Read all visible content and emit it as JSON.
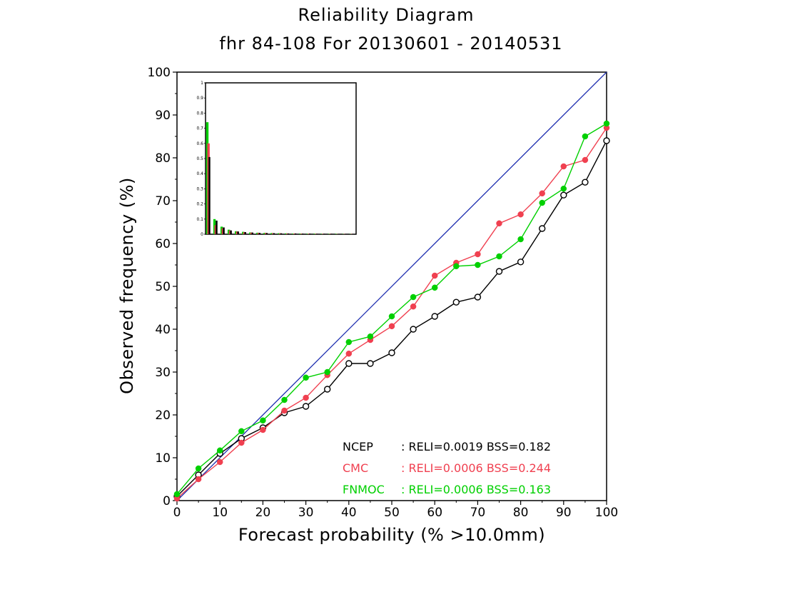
{
  "chart_data": {
    "type": "line",
    "title": "Reliability Diagram",
    "subtitle": "fhr 84-108 For 20130601 - 20140531",
    "xlabel": "Forecast probability (% >10.0mm)",
    "ylabel": "Observed frequency (%)",
    "xlim": [
      0,
      100
    ],
    "ylim": [
      0,
      100
    ],
    "x_ticks": [
      "0",
      "10",
      "20",
      "30",
      "40",
      "50",
      "60",
      "70",
      "80",
      "90",
      "100"
    ],
    "y_ticks": [
      "0",
      "10",
      "20",
      "30",
      "40",
      "50",
      "60",
      "70",
      "80",
      "90",
      "100"
    ],
    "grid": false,
    "diagonal_color": "#1f2fb0",
    "series": [
      {
        "name": "NCEP",
        "color": "#000000",
        "marker": "open-circle",
        "x": [
          0,
          5,
          10,
          15,
          20,
          25,
          30,
          35,
          40,
          45,
          50,
          55,
          60,
          65,
          70,
          75,
          80,
          85,
          90,
          95,
          100
        ],
        "y": [
          1,
          6,
          11,
          14.5,
          17,
          20.5,
          22,
          26,
          32,
          32,
          34.5,
          40,
          43,
          46.3,
          47.5,
          53.5,
          55.7,
          63.5,
          71.3,
          74.3,
          84
        ]
      },
      {
        "name": "CMC",
        "color": "#f04050",
        "marker": "filled-circle",
        "x": [
          0,
          5,
          10,
          15,
          20,
          25,
          30,
          35,
          40,
          45,
          50,
          55,
          60,
          65,
          70,
          75,
          80,
          85,
          90,
          95,
          100
        ],
        "y": [
          0.5,
          5,
          9,
          13.5,
          16.5,
          21,
          24,
          29.3,
          34.3,
          37.5,
          40.7,
          45.3,
          52.5,
          55.5,
          57.5,
          64.7,
          66.8,
          71.7,
          78,
          79.5,
          87
        ]
      },
      {
        "name": "FNMOC",
        "color": "#00d000",
        "marker": "filled-circle",
        "x": [
          0,
          5,
          10,
          15,
          20,
          25,
          30,
          35,
          40,
          45,
          50,
          55,
          60,
          65,
          70,
          75,
          80,
          85,
          90,
          95,
          100
        ],
        "y": [
          1.5,
          7.5,
          11.7,
          16.2,
          18.7,
          23.5,
          28.7,
          30,
          37,
          38.3,
          43,
          47.5,
          49.7,
          54.7,
          55,
          57,
          61,
          69.5,
          72.8,
          85,
          88
        ]
      }
    ],
    "legend": {
      "placement": "bottom-right",
      "entries": [
        {
          "label": "NCEP",
          "stats": ": RELI=0.0019  BSS=0.182",
          "color": "#000000"
        },
        {
          "label": "CMC",
          "stats": ": RELI=0.0006  BSS=0.244",
          "color": "#f04050"
        },
        {
          "label": "FNMOC",
          "stats": ": RELI=0.0006  BSS=0.163",
          "color": "#00d000"
        }
      ]
    },
    "inset": {
      "type": "bar",
      "placement": "top-left",
      "ylim": [
        0,
        1
      ],
      "y_ticks": [
        "0",
        "0.1",
        "0.2",
        "0.3",
        "0.4",
        "0.5",
        "0.6",
        "0.7",
        "0.8",
        "0.9",
        "1"
      ],
      "series": [
        {
          "name": "NCEP",
          "color": "#000000",
          "values": [
            0.51,
            0.09,
            0.045,
            0.025,
            0.018,
            0.014,
            0.011,
            0.009,
            0.008,
            0.007,
            0.006,
            0.005,
            0.005,
            0.004,
            0.004,
            0.003,
            0.003,
            0.003,
            0.002,
            0.002,
            0.002
          ]
        },
        {
          "name": "CMC",
          "color": "#f04050",
          "values": [
            0.6,
            0.06,
            0.04,
            0.025,
            0.018,
            0.014,
            0.011,
            0.009,
            0.008,
            0.007,
            0.006,
            0.005,
            0.005,
            0.004,
            0.004,
            0.003,
            0.003,
            0.003,
            0.002,
            0.002,
            0.002
          ]
        },
        {
          "name": "FNMOC",
          "color": "#00d000",
          "values": [
            0.74,
            0.1,
            0.05,
            0.03,
            0.02,
            0.016,
            0.012,
            0.01,
            0.009,
            0.008,
            0.007,
            0.006,
            0.005,
            0.005,
            0.004,
            0.004,
            0.003,
            0.003,
            0.003,
            0.002,
            0.002
          ]
        }
      ]
    }
  }
}
